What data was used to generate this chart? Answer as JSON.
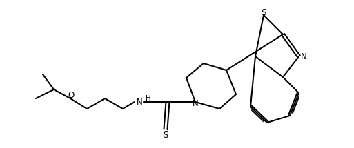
{
  "bg_color": "#ffffff",
  "line_color": "#000000",
  "lw": 1.5,
  "figsize": [
    5.13,
    2.15
  ],
  "dpi": 100,
  "xlim": [
    0,
    513
  ],
  "ylim": [
    0,
    215
  ]
}
